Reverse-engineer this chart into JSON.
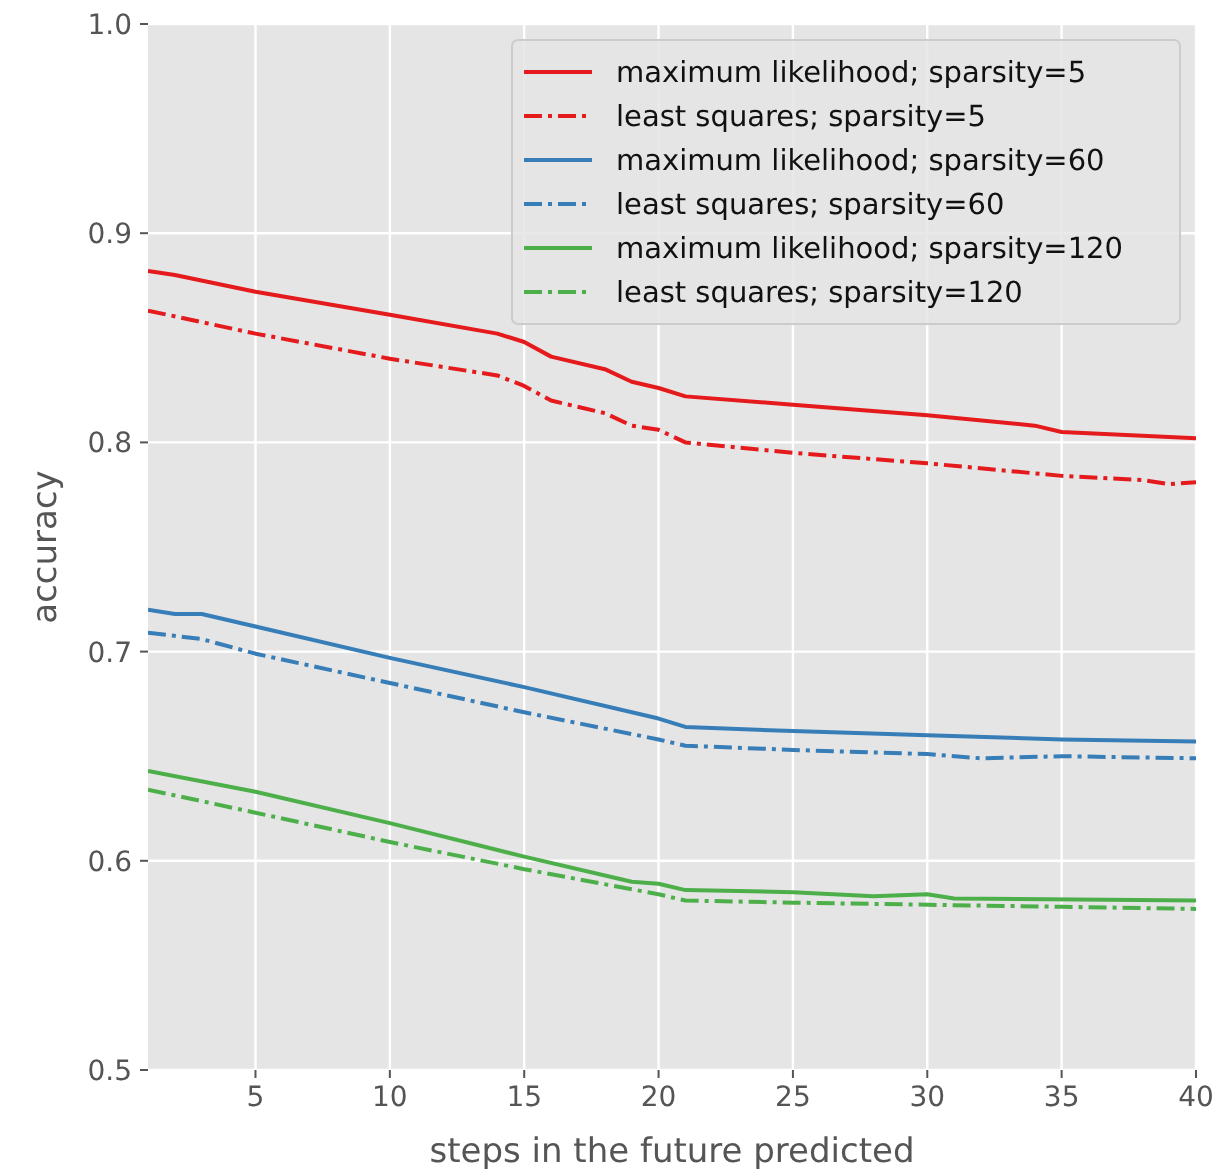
{
  "chart_data": {
    "type": "line",
    "xlabel": "steps in the future predicted",
    "ylabel": "accuracy",
    "xlim": [
      1,
      40
    ],
    "ylim": [
      0.5,
      1
    ],
    "xticks": [
      5,
      10,
      15,
      20,
      25,
      30,
      35,
      40
    ],
    "yticks": [
      0.5,
      0.6,
      0.7,
      0.8,
      0.9,
      {
        "value": 1,
        "label": "1.0"
      }
    ],
    "grid": true,
    "legend": "top right",
    "series": [
      {
        "name": "maximum likelihood; sparsity=5",
        "color": "#e41a1c",
        "line_style": "solid",
        "x": [
          1,
          2,
          5,
          10,
          14,
          15,
          16,
          18,
          19,
          20,
          21,
          25,
          30,
          34,
          35,
          40
        ],
        "values": [
          0.882,
          0.88,
          0.872,
          0.861,
          0.852,
          0.848,
          0.841,
          0.835,
          0.829,
          0.826,
          0.822,
          0.818,
          0.813,
          0.808,
          0.805,
          0.802
        ]
      },
      {
        "name": "least squares; sparsity=5",
        "color": "#e41a1c",
        "line_style": "dashdot",
        "x": [
          1,
          5,
          10,
          14,
          15,
          16,
          18,
          19,
          20,
          21,
          25,
          30,
          35,
          38,
          39,
          40
        ],
        "values": [
          0.863,
          0.852,
          0.84,
          0.832,
          0.827,
          0.82,
          0.814,
          0.808,
          0.806,
          0.8,
          0.795,
          0.79,
          0.784,
          0.782,
          0.78,
          0.781
        ]
      },
      {
        "name": "maximum likelihood; sparsity=60",
        "color": "#377eb8",
        "line_style": "solid",
        "x": [
          1,
          2,
          3,
          5,
          10,
          15,
          20,
          21,
          25,
          30,
          35,
          40
        ],
        "values": [
          0.72,
          0.718,
          0.718,
          0.712,
          0.697,
          0.683,
          0.668,
          0.664,
          0.662,
          0.66,
          0.658,
          0.657
        ]
      },
      {
        "name": "least squares; sparsity=60",
        "color": "#377eb8",
        "line_style": "dashdot",
        "x": [
          1,
          3,
          5,
          10,
          15,
          20,
          21,
          25,
          30,
          32,
          35,
          40
        ],
        "values": [
          0.709,
          0.706,
          0.699,
          0.685,
          0.671,
          0.658,
          0.655,
          0.653,
          0.651,
          0.649,
          0.65,
          0.649
        ]
      },
      {
        "name": "maximum likelihood; sparsity=120",
        "color": "#4daf4a",
        "line_style": "solid",
        "x": [
          1,
          5,
          10,
          15,
          19,
          20,
          21,
          25,
          28,
          30,
          31,
          40
        ],
        "values": [
          0.643,
          0.633,
          0.618,
          0.602,
          0.59,
          0.589,
          0.586,
          0.585,
          0.583,
          0.584,
          0.582,
          0.581
        ]
      },
      {
        "name": "least squares; sparsity=120",
        "color": "#4daf4a",
        "line_style": "dashdot",
        "x": [
          1,
          5,
          10,
          15,
          20,
          21,
          25,
          30,
          35,
          40
        ],
        "values": [
          0.634,
          0.623,
          0.609,
          0.596,
          0.584,
          0.581,
          0.58,
          0.579,
          0.578,
          0.577
        ]
      }
    ]
  }
}
